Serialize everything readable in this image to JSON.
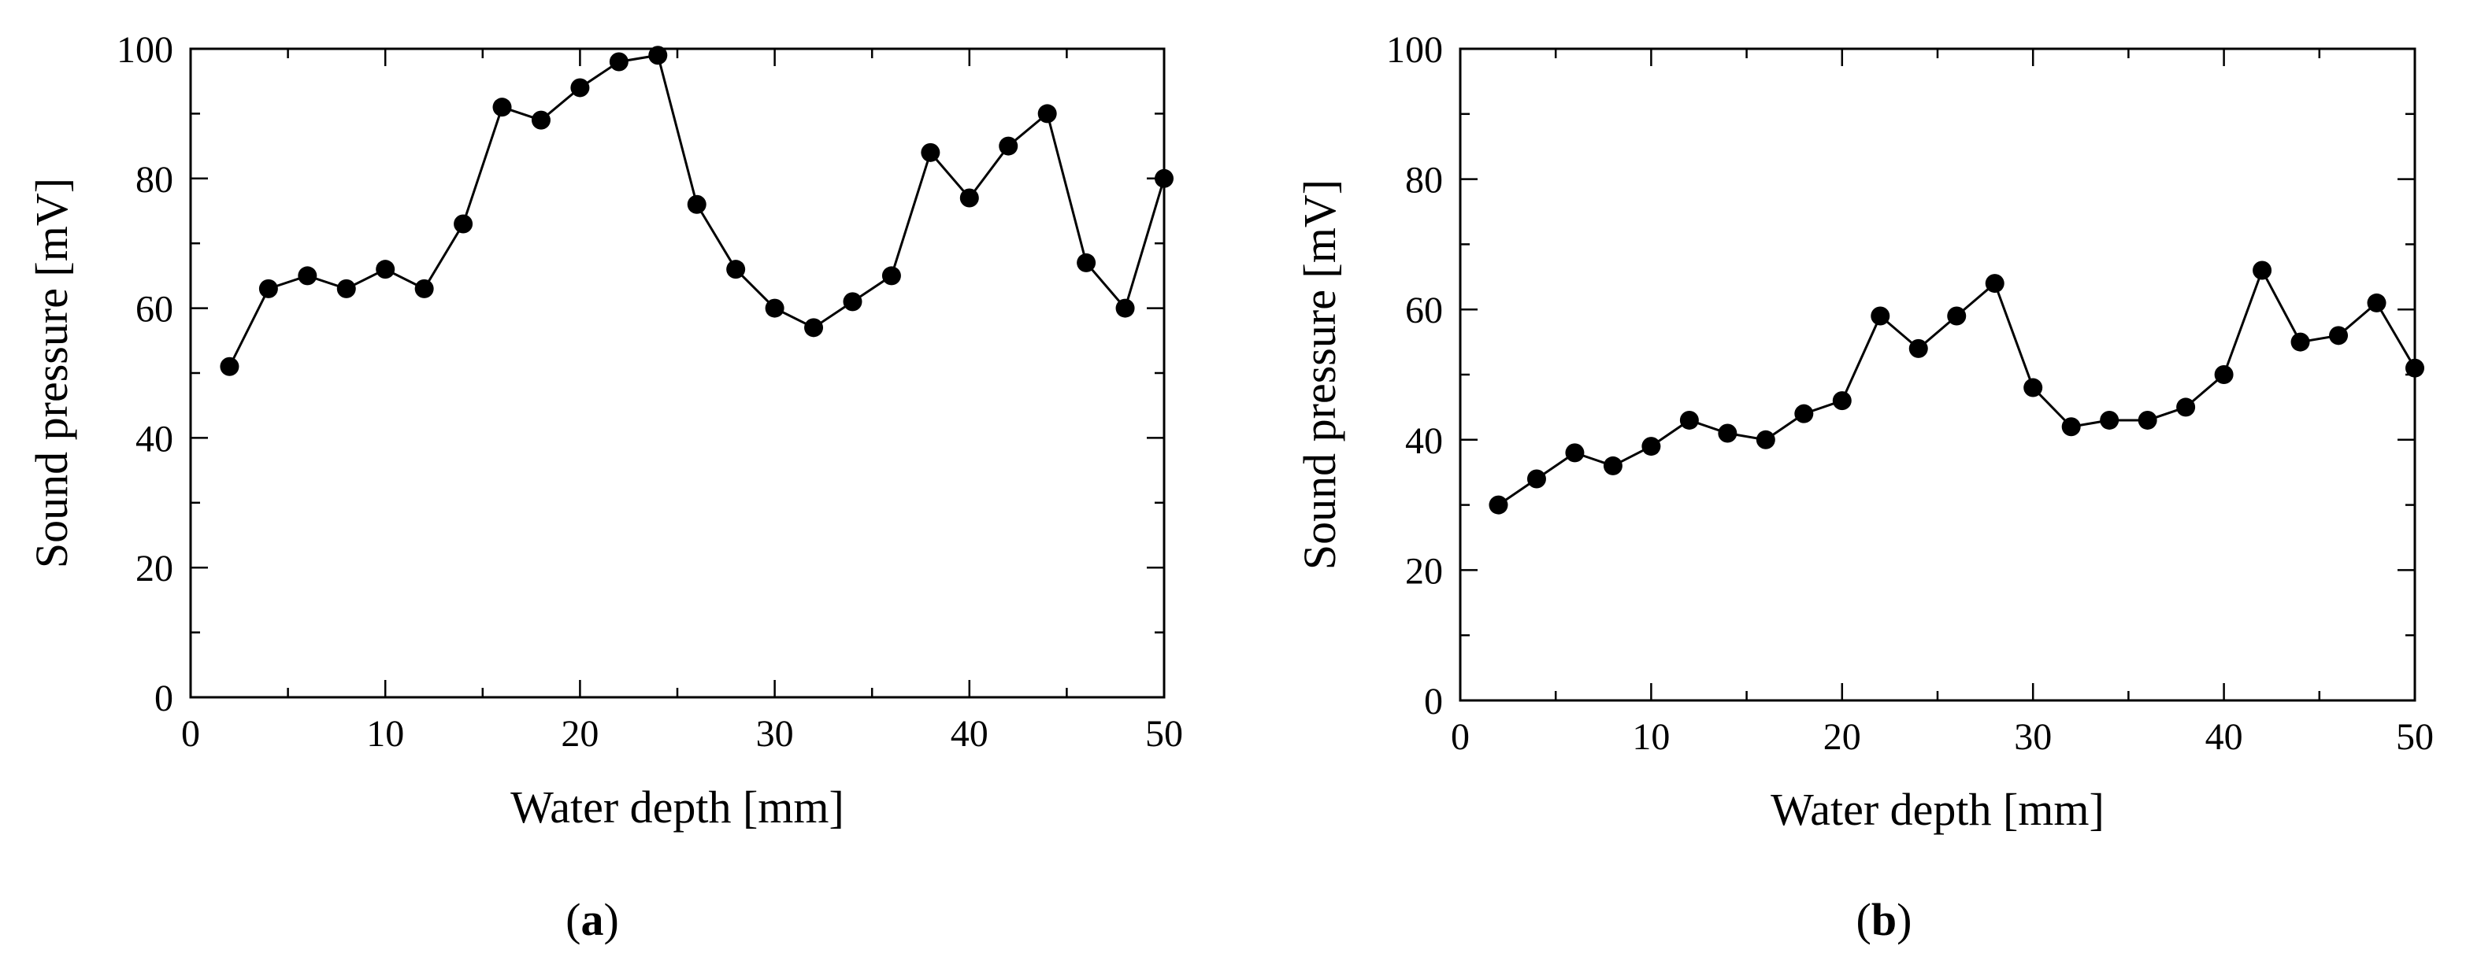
{
  "chart_data": [
    {
      "type": "line",
      "panel_label": "a",
      "title": "",
      "xlabel": "Water depth [mm]",
      "ylabel": "Sound pressure [mV]",
      "xlim": [
        0,
        50
      ],
      "ylim": [
        0,
        100
      ],
      "xticks": [
        0,
        10,
        20,
        30,
        40,
        50
      ],
      "yticks": [
        0,
        20,
        40,
        60,
        80,
        100
      ],
      "grid": false,
      "marker": "filled-circle",
      "color": "#000000",
      "series": [
        {
          "name": "Sound pressure",
          "x": [
            2,
            4,
            6,
            8,
            10,
            12,
            14,
            16,
            18,
            20,
            22,
            24,
            26,
            28,
            30,
            32,
            34,
            36,
            38,
            40,
            42,
            44,
            46,
            48,
            50
          ],
          "y": [
            51,
            63,
            65,
            63,
            66,
            63,
            73,
            91,
            89,
            94,
            98,
            99,
            76,
            66,
            60,
            57,
            61,
            65,
            84,
            77,
            85,
            90,
            67,
            60,
            80
          ]
        }
      ]
    },
    {
      "type": "line",
      "panel_label": "b",
      "title": "",
      "xlabel": "Water depth [mm]",
      "ylabel": "Sound pressure [mV]",
      "xlim": [
        0,
        50
      ],
      "ylim": [
        0,
        100
      ],
      "xticks": [
        0,
        10,
        20,
        30,
        40,
        50
      ],
      "yticks": [
        0,
        20,
        40,
        60,
        80,
        100
      ],
      "grid": false,
      "marker": "filled-circle",
      "color": "#000000",
      "series": [
        {
          "name": "Sound pressure",
          "x": [
            2,
            4,
            6,
            8,
            10,
            12,
            14,
            16,
            18,
            20,
            22,
            24,
            26,
            28,
            30,
            32,
            34,
            36,
            38,
            40,
            42,
            44,
            46,
            48,
            50
          ],
          "y": [
            30,
            34,
            38,
            36,
            39,
            43,
            41,
            40,
            44,
            46,
            59,
            54,
            59,
            64,
            48,
            42,
            43,
            43,
            45,
            50,
            66,
            55,
            56,
            61,
            51
          ]
        }
      ]
    }
  ],
  "captions": [
    {
      "open": "(",
      "letter": "a",
      "close": ")"
    },
    {
      "open": "(",
      "letter": "b",
      "close": ")"
    }
  ]
}
